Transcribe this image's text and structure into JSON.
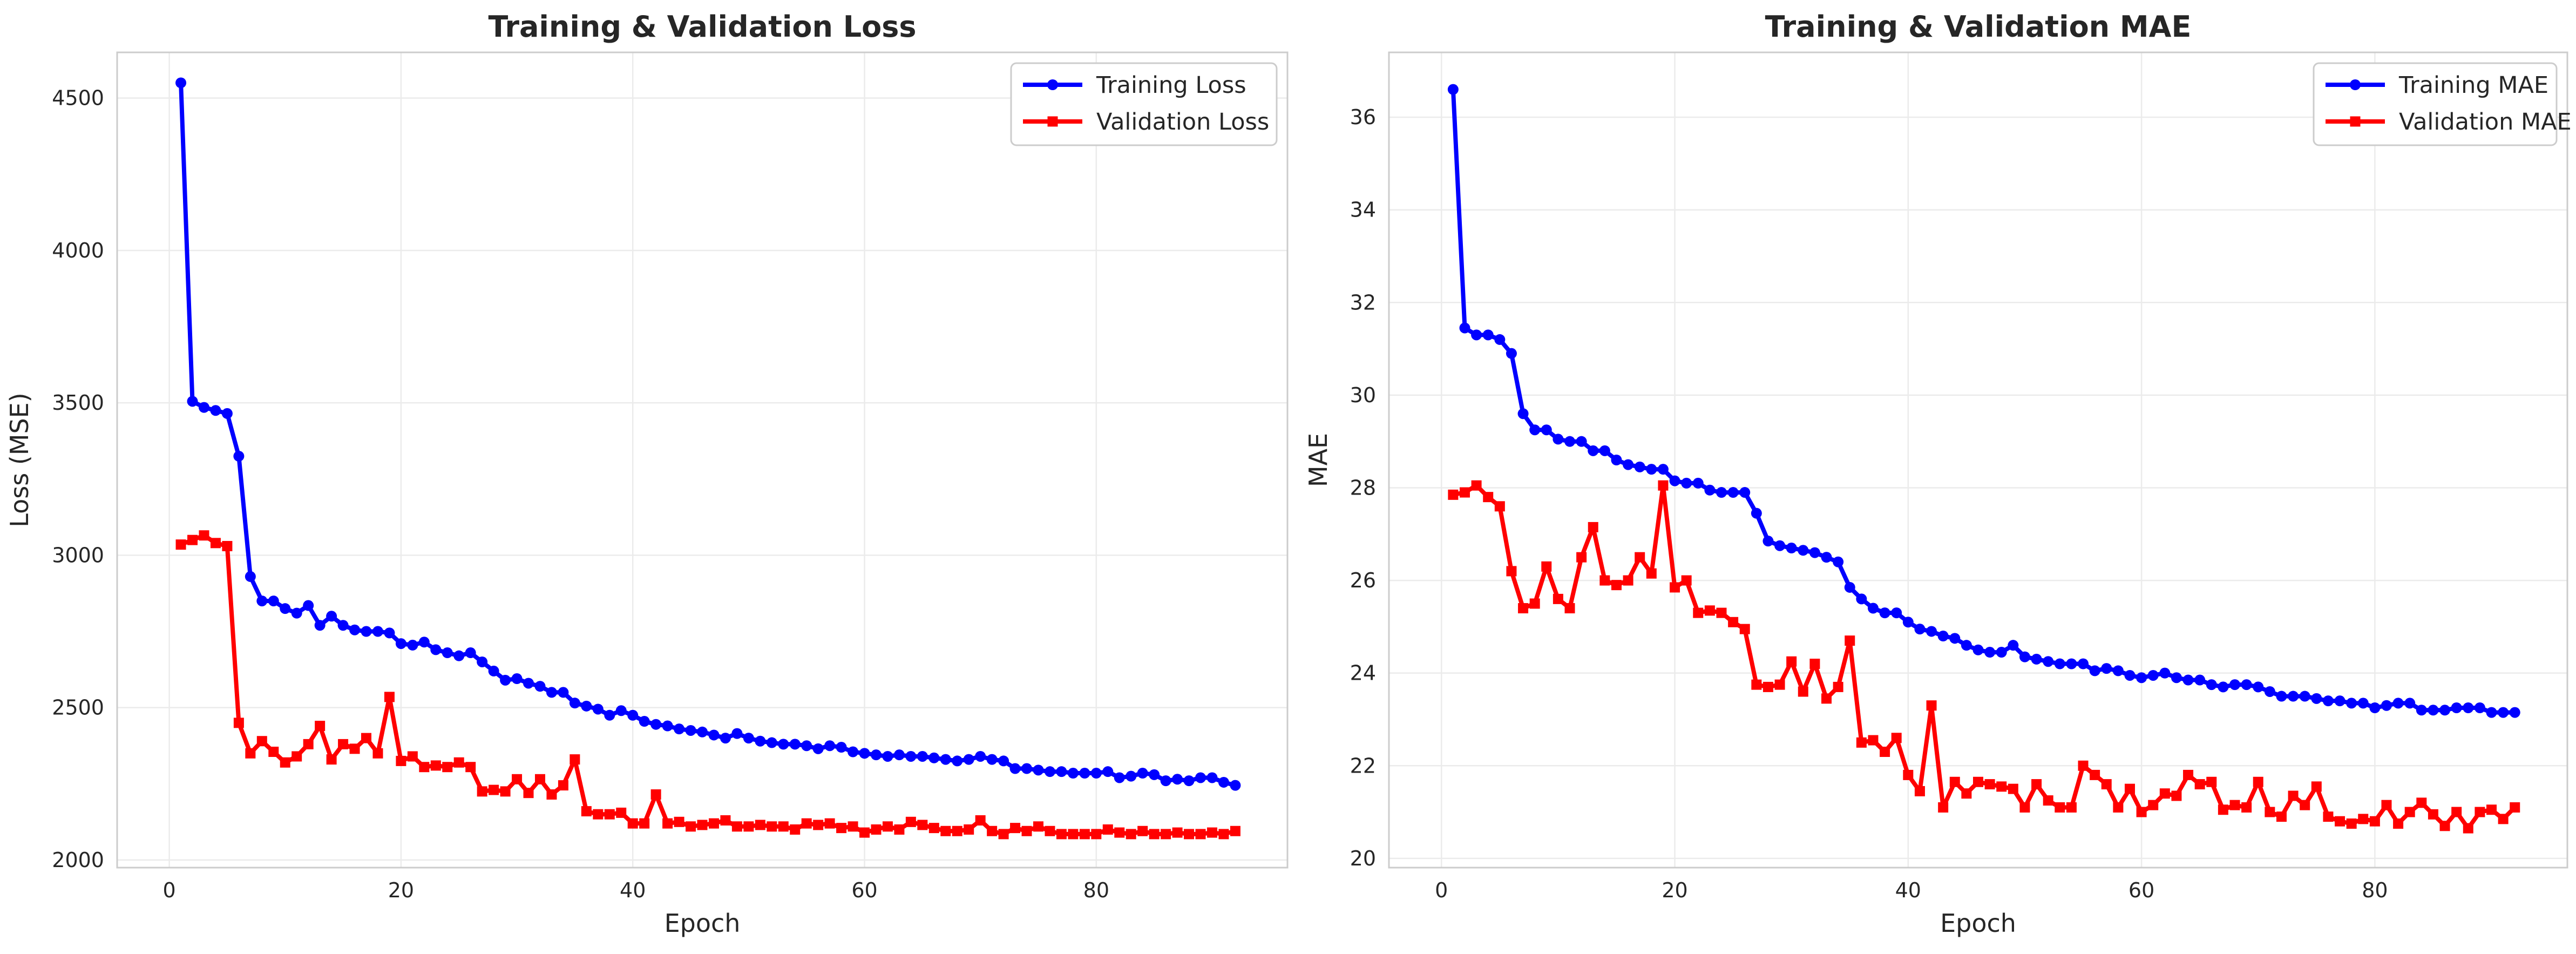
{
  "chart_data": [
    {
      "type": "line",
      "title": "Training & Validation Loss",
      "xlabel": "Epoch",
      "ylabel": "Loss (MSE)",
      "xlim": [
        -4.5,
        96.5
      ],
      "ylim": [
        1975,
        4650
      ],
      "xticks": [
        0,
        20,
        40,
        60,
        80
      ],
      "yticks": [
        2000,
        2500,
        3000,
        3500,
        4000,
        4500
      ],
      "grid": true,
      "legend_position": "top-right",
      "x_start": 1,
      "series": [
        {
          "name": "Training Loss",
          "color": "#0000ff",
          "marker": "circle",
          "values": [
            4550,
            3505,
            3485,
            3475,
            3465,
            3325,
            2930,
            2850,
            2850,
            2825,
            2810,
            2835,
            2770,
            2800,
            2770,
            2755,
            2750,
            2750,
            2745,
            2710,
            2705,
            2715,
            2690,
            2680,
            2670,
            2680,
            2650,
            2620,
            2590,
            2595,
            2580,
            2570,
            2550,
            2550,
            2515,
            2505,
            2495,
            2475,
            2490,
            2475,
            2455,
            2445,
            2440,
            2430,
            2425,
            2420,
            2410,
            2400,
            2415,
            2400,
            2390,
            2385,
            2380,
            2380,
            2375,
            2365,
            2375,
            2370,
            2355,
            2350,
            2345,
            2340,
            2345,
            2340,
            2340,
            2335,
            2330,
            2325,
            2330,
            2340,
            2330,
            2325,
            2300,
            2300,
            2295,
            2290,
            2290,
            2285,
            2285,
            2285,
            2290,
            2270,
            2275,
            2285,
            2280,
            2260,
            2265,
            2260,
            2270,
            2270,
            2255,
            2245
          ]
        },
        {
          "name": "Validation Loss",
          "color": "#ff0000",
          "marker": "square",
          "values": [
            3035,
            3050,
            3065,
            3040,
            3030,
            2450,
            2350,
            2390,
            2355,
            2320,
            2340,
            2380,
            2440,
            2330,
            2380,
            2365,
            2400,
            2350,
            2535,
            2325,
            2340,
            2305,
            2310,
            2305,
            2320,
            2305,
            2225,
            2230,
            2225,
            2265,
            2220,
            2265,
            2215,
            2245,
            2330,
            2160,
            2150,
            2150,
            2155,
            2120,
            2120,
            2215,
            2120,
            2125,
            2110,
            2115,
            2120,
            2130,
            2110,
            2110,
            2115,
            2110,
            2110,
            2100,
            2120,
            2115,
            2120,
            2105,
            2110,
            2090,
            2100,
            2110,
            2100,
            2125,
            2115,
            2105,
            2095,
            2095,
            2100,
            2130,
            2095,
            2085,
            2105,
            2095,
            2110,
            2095,
            2085,
            2085,
            2085,
            2085,
            2100,
            2090,
            2085,
            2095,
            2085,
            2085,
            2090,
            2085,
            2085,
            2090,
            2085,
            2095
          ]
        }
      ]
    },
    {
      "type": "line",
      "title": "Training & Validation MAE",
      "xlabel": "Epoch",
      "ylabel": "MAE",
      "xlim": [
        -4.5,
        96.5
      ],
      "ylim": [
        19.8,
        37.4
      ],
      "xticks": [
        0,
        20,
        40,
        60,
        80
      ],
      "yticks": [
        20,
        22,
        24,
        26,
        28,
        30,
        32,
        34,
        36
      ],
      "grid": true,
      "legend_position": "top-right",
      "x_start": 1,
      "series": [
        {
          "name": "Training MAE",
          "color": "#0000ff",
          "marker": "circle",
          "values": [
            36.6,
            31.45,
            31.3,
            31.3,
            31.2,
            30.9,
            29.6,
            29.25,
            29.25,
            29.05,
            29.0,
            29.0,
            28.8,
            28.8,
            28.6,
            28.5,
            28.45,
            28.4,
            28.4,
            28.15,
            28.1,
            28.1,
            27.95,
            27.9,
            27.9,
            27.9,
            27.45,
            26.85,
            26.75,
            26.7,
            26.65,
            26.6,
            26.5,
            26.4,
            25.85,
            25.6,
            25.4,
            25.3,
            25.3,
            25.1,
            24.95,
            24.9,
            24.8,
            24.75,
            24.6,
            24.5,
            24.45,
            24.45,
            24.6,
            24.35,
            24.3,
            24.25,
            24.2,
            24.2,
            24.2,
            24.05,
            24.1,
            24.05,
            23.95,
            23.9,
            23.95,
            24.0,
            23.9,
            23.85,
            23.85,
            23.75,
            23.7,
            23.75,
            23.75,
            23.7,
            23.6,
            23.5,
            23.5,
            23.5,
            23.45,
            23.4,
            23.4,
            23.35,
            23.35,
            23.25,
            23.3,
            23.35,
            23.35,
            23.2,
            23.2,
            23.2,
            23.25,
            23.25,
            23.25,
            23.15,
            23.15,
            23.15
          ]
        },
        {
          "name": "Validation MAE",
          "color": "#ff0000",
          "marker": "square",
          "values": [
            27.85,
            27.9,
            28.05,
            27.8,
            27.6,
            26.2,
            25.4,
            25.5,
            26.3,
            25.6,
            25.4,
            26.5,
            27.15,
            26.0,
            25.9,
            26.0,
            26.5,
            26.15,
            28.05,
            25.85,
            26.0,
            25.3,
            25.35,
            25.3,
            25.1,
            24.95,
            23.75,
            23.7,
            23.75,
            24.25,
            23.6,
            24.2,
            23.45,
            23.7,
            24.7,
            22.5,
            22.55,
            22.3,
            22.6,
            21.8,
            21.45,
            23.3,
            21.1,
            21.65,
            21.4,
            21.65,
            21.6,
            21.55,
            21.5,
            21.1,
            21.6,
            21.25,
            21.1,
            21.1,
            22.0,
            21.8,
            21.6,
            21.1,
            21.5,
            21.0,
            21.15,
            21.4,
            21.35,
            21.8,
            21.6,
            21.65,
            21.05,
            21.15,
            21.1,
            21.65,
            21.0,
            20.9,
            21.35,
            21.15,
            21.55,
            20.9,
            20.8,
            20.75,
            20.85,
            20.8,
            21.15,
            20.75,
            21.0,
            21.2,
            20.95,
            20.7,
            21.0,
            20.65,
            21.0,
            21.05,
            20.85,
            21.1
          ]
        }
      ]
    }
  ]
}
